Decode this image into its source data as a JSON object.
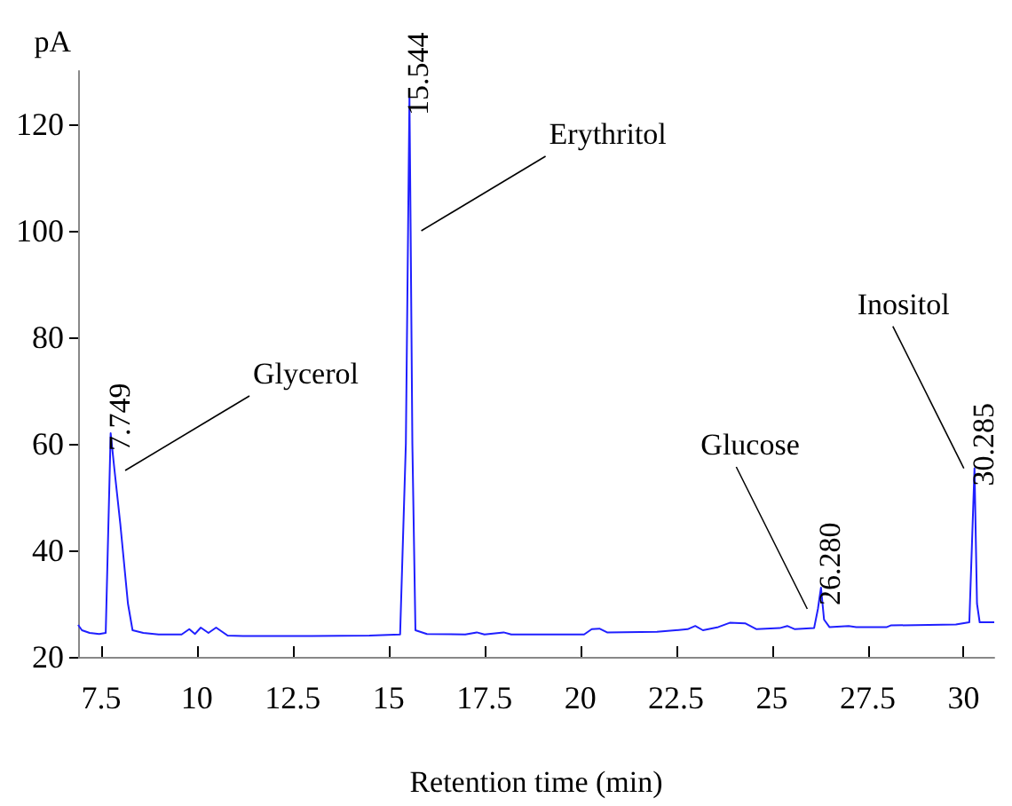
{
  "chart_data": {
    "type": "line",
    "xlabel": "Retention time (min)",
    "ylabel": "pA",
    "xlim": [
      6.9,
      30.8
    ],
    "xticks": [
      7.5,
      10,
      12.5,
      15,
      17.5,
      20,
      22.5,
      25,
      27.5,
      30
    ],
    "ylim": [
      20,
      130
    ],
    "yticks": [
      20,
      40,
      60,
      80,
      100,
      120
    ],
    "grid": false,
    "marker": "none",
    "line_style": "solid",
    "series": [
      {
        "color": "#1f1fff",
        "x": [
          6.9,
          7.0,
          7.2,
          7.45,
          7.62,
          7.749,
          7.85,
          8.0,
          8.2,
          8.32,
          8.6,
          9.0,
          9.6,
          9.8,
          9.95,
          10.1,
          10.3,
          10.5,
          10.8,
          11.2,
          13.0,
          14.5,
          15.3,
          15.45,
          15.544,
          15.575,
          15.62,
          15.7,
          16.0,
          17.0,
          17.3,
          17.5,
          18.0,
          18.2,
          20.1,
          20.3,
          20.5,
          20.7,
          22.0,
          22.8,
          23.0,
          23.2,
          23.6,
          23.9,
          24.3,
          24.6,
          25.2,
          25.4,
          25.6,
          26.1,
          26.2,
          26.28,
          26.36,
          26.5,
          27.0,
          27.2,
          28.0,
          28.1,
          29.8,
          30.15,
          30.285,
          30.35,
          30.42,
          30.8
        ],
        "values": [
          26,
          25,
          24.5,
          24.3,
          24.5,
          62,
          55,
          45,
          30,
          25,
          24.5,
          24.2,
          24.2,
          25.2,
          24.3,
          25.5,
          24.5,
          25.5,
          24,
          23.9,
          23.9,
          24,
          24.2,
          60,
          125,
          100,
          60,
          25,
          24.3,
          24.2,
          24.6,
          24.2,
          24.6,
          24.2,
          24.2,
          25.2,
          25.3,
          24.6,
          24.7,
          25.2,
          25.8,
          25,
          25.6,
          26.4,
          26.3,
          25.2,
          25.4,
          25.8,
          25.2,
          25.4,
          29,
          33,
          27,
          25.6,
          25.8,
          25.6,
          25.6,
          25.9,
          26.1,
          26.5,
          55.4,
          30,
          26.5,
          26.5
        ]
      }
    ],
    "annotations": [
      {
        "text": "7.749",
        "x": 7.749,
        "y": 62
      },
      {
        "text": "15.544",
        "x": 15.544,
        "y": 125
      },
      {
        "text": "26.280",
        "x": 26.28,
        "y": 33
      },
      {
        "text": "30.285",
        "x": 30.285,
        "y": 55.4
      },
      {
        "text": "Glycerol",
        "x": 7.85,
        "y": 55
      },
      {
        "text": "Erythritol",
        "x": 15.575,
        "y": 100
      },
      {
        "text": "Glucose",
        "x": 26.2,
        "y": 29
      },
      {
        "text": "Inositol",
        "x": 30.285,
        "y": 55.4
      }
    ]
  }
}
